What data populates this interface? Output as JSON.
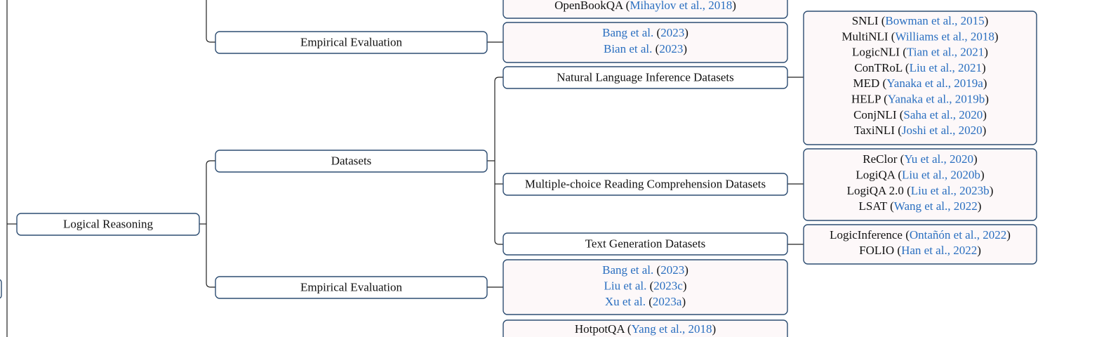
{
  "nodes": [
    {
      "label": "Logical Reasoning"
    },
    {
      "label": "Empirical Evaluation"
    },
    {
      "label": "Datasets"
    },
    {
      "label": "Empirical Evaluation"
    },
    {
      "label": "Natural Language Inference Datasets"
    },
    {
      "label": "Multiple-choice Reading Comprehension Datasets"
    },
    {
      "label": "Text Generation Datasets"
    }
  ],
  "lists": [
    {
      "items": [
        [
          {
            "text": "OpenBookQA ("
          },
          {
            "text": "Mihaylov et al., 2018",
            "link": true
          },
          {
            "text": ")"
          }
        ]
      ]
    },
    {
      "items": [
        [
          {
            "text": "Bang et al.",
            "link": true
          },
          {
            "text": " ("
          },
          {
            "text": "2023",
            "link": true
          },
          {
            "text": ")"
          }
        ],
        [
          {
            "text": "Bian et al.",
            "link": true
          },
          {
            "text": " ("
          },
          {
            "text": "2023",
            "link": true
          },
          {
            "text": ")"
          }
        ]
      ]
    },
    {
      "items": [
        [
          {
            "text": "SNLI ("
          },
          {
            "text": "Bowman et al., 2015",
            "link": true
          },
          {
            "text": ")"
          }
        ],
        [
          {
            "text": "MultiNLI ("
          },
          {
            "text": "Williams et al., 2018",
            "link": true
          },
          {
            "text": ")"
          }
        ],
        [
          {
            "text": "LogicNLI ("
          },
          {
            "text": "Tian et al., 2021",
            "link": true
          },
          {
            "text": ")"
          }
        ],
        [
          {
            "text": "ConTRoL ("
          },
          {
            "text": "Liu et al., 2021",
            "link": true
          },
          {
            "text": ")"
          }
        ],
        [
          {
            "text": "MED ("
          },
          {
            "text": "Yanaka et al., 2019a",
            "link": true
          },
          {
            "text": ")"
          }
        ],
        [
          {
            "text": "HELP ("
          },
          {
            "text": "Yanaka et al., 2019b",
            "link": true
          },
          {
            "text": ")"
          }
        ],
        [
          {
            "text": "ConjNLI ("
          },
          {
            "text": "Saha et al., 2020",
            "link": true
          },
          {
            "text": ")"
          }
        ],
        [
          {
            "text": "TaxiNLI ("
          },
          {
            "text": "Joshi et al., 2020",
            "link": true
          },
          {
            "text": ")"
          }
        ]
      ]
    },
    {
      "items": [
        [
          {
            "text": "ReClor ("
          },
          {
            "text": "Yu et al., 2020",
            "link": true
          },
          {
            "text": ")"
          }
        ],
        [
          {
            "text": "LogiQA ("
          },
          {
            "text": "Liu et al., 2020b",
            "link": true
          },
          {
            "text": ")"
          }
        ],
        [
          {
            "text": "LogiQA 2.0 ("
          },
          {
            "text": "Liu et al., 2023b",
            "link": true
          },
          {
            "text": ")"
          }
        ],
        [
          {
            "text": "LSAT ("
          },
          {
            "text": "Wang et al., 2022",
            "link": true
          },
          {
            "text": ")"
          }
        ]
      ]
    },
    {
      "items": [
        [
          {
            "text": "LogicInference ("
          },
          {
            "text": "Ontañón et al., 2022",
            "link": true
          },
          {
            "text": ")"
          }
        ],
        [
          {
            "text": "FOLIO ("
          },
          {
            "text": "Han et al., 2022",
            "link": true
          },
          {
            "text": ")"
          }
        ]
      ]
    },
    {
      "items": [
        [
          {
            "text": "Bang et al.",
            "link": true
          },
          {
            "text": " ("
          },
          {
            "text": "2023",
            "link": true
          },
          {
            "text": ")"
          }
        ],
        [
          {
            "text": "Liu et al.",
            "link": true
          },
          {
            "text": " ("
          },
          {
            "text": "2023c",
            "link": true
          },
          {
            "text": ")"
          }
        ],
        [
          {
            "text": "Xu et al.",
            "link": true
          },
          {
            "text": " ("
          },
          {
            "text": "2023a",
            "link": true
          },
          {
            "text": ")"
          }
        ]
      ]
    },
    {
      "items": [
        [
          {
            "text": "HotpotQA ("
          },
          {
            "text": "Yang et al., 2018",
            "link": true
          },
          {
            "text": ")"
          }
        ]
      ]
    }
  ]
}
